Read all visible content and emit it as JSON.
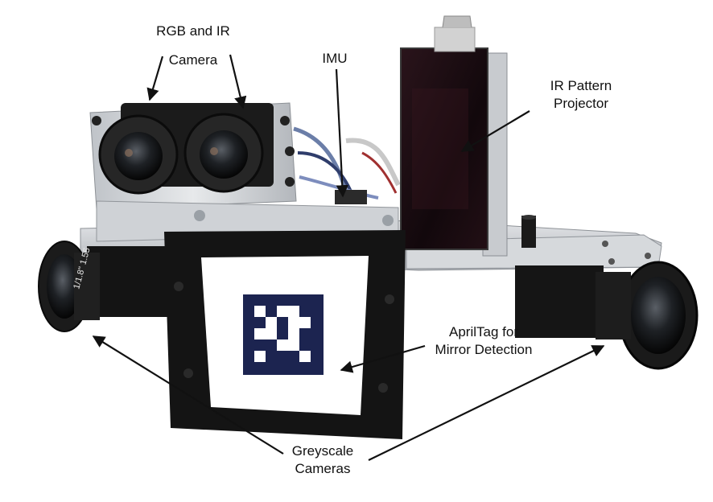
{
  "figure": {
    "labels": {
      "rgb_ir_line1": "RGB and IR",
      "rgb_ir_line2": "Camera",
      "imu": "IMU",
      "projector_line1": "IR Pattern",
      "projector_line2": "Projector",
      "apriltag_line1": "AprilTag for",
      "apriltag_line2": "Mirror Detection",
      "grey_line1": "Greyscale",
      "grey_line2": "Cameras"
    },
    "lens_marking": "1/1.8\" 1.55"
  },
  "colors": {
    "background": "#ffffff",
    "aluminum": "#c9ccd0",
    "black_body": "#161616",
    "projector_glass": "#1a0d12",
    "tag_navy": "#1c2450",
    "arrow": "#111111"
  }
}
